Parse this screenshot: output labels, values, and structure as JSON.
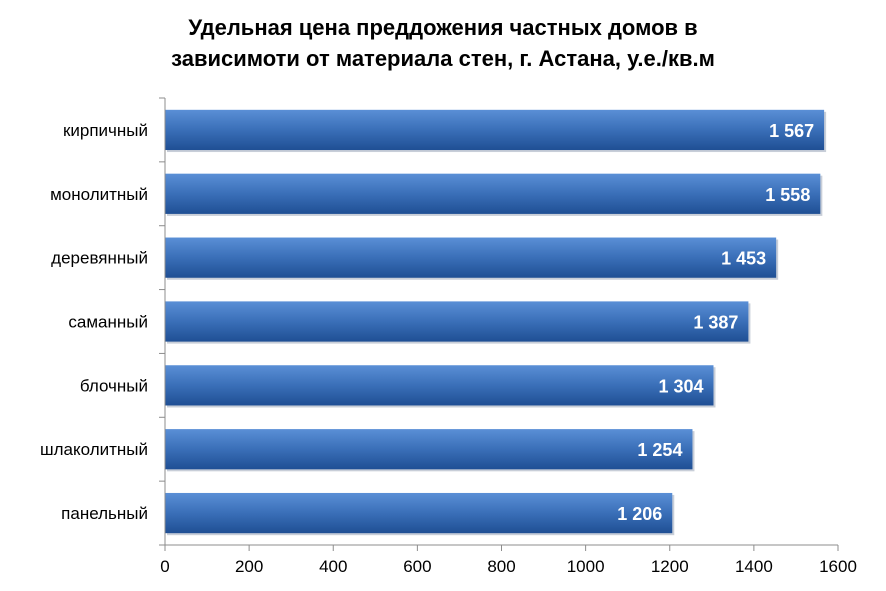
{
  "chart_data": {
    "type": "bar",
    "orientation": "horizontal",
    "title_line1": "Удельная цена преддожения частных домов в",
    "title_line2": "зависимоти от материала стен, г. Астана, у.е./кв.м",
    "categories": [
      "кирпичный",
      "монолитный",
      "деревянный",
      "саманный",
      "блочный",
      "шлаколитный",
      "панельный"
    ],
    "values": [
      1567,
      1558,
      1453,
      1387,
      1304,
      1254,
      1206
    ],
    "data_labels": [
      "1 567",
      "1 558",
      "1 453",
      "1 387",
      "1 304",
      "1 254",
      "1 206"
    ],
    "xlim": [
      0,
      1600
    ],
    "xticks": [
      "0",
      "200",
      "400",
      "600",
      "800",
      "1000",
      "1200",
      "1400",
      "1600"
    ],
    "bar_color": "#3a6fb8",
    "bar_color_light": "#5a8fd6",
    "bar_color_dark": "#1f4f94",
    "label_color": "#ffffff",
    "grid": false,
    "legend": "none"
  }
}
